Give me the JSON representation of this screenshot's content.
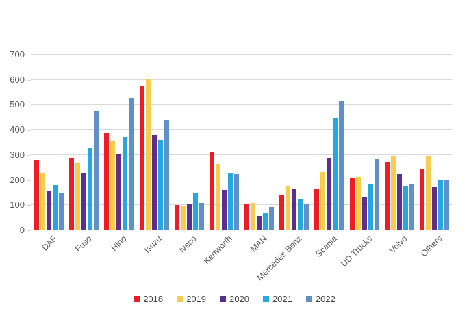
{
  "chart_data": {
    "type": "bar",
    "title": "",
    "categories": [
      "DAF",
      "Fuso",
      "Hino",
      "Isuzu",
      "Iveco",
      "Kenworth",
      "MAN",
      "Mercedes Benz",
      "Scania",
      "UD Trucks",
      "Volvo",
      "Others"
    ],
    "series": [
      {
        "name": "2018",
        "color": "#ee1c25",
        "values": [
          280,
          290,
          390,
          575,
          100,
          310,
          105,
          140,
          165,
          210,
          272,
          245
        ]
      },
      {
        "name": "2019",
        "color": "#f8cc4c",
        "values": [
          230,
          270,
          355,
          605,
          97,
          265,
          108,
          178,
          235,
          212,
          298,
          297
        ]
      },
      {
        "name": "2020",
        "color": "#5b2e90",
        "values": [
          155,
          228,
          305,
          380,
          105,
          160,
          58,
          163,
          290,
          133,
          223,
          171
        ]
      },
      {
        "name": "2021",
        "color": "#23a8e0",
        "values": [
          180,
          330,
          370,
          360,
          147,
          230,
          71,
          125,
          450,
          185,
          177,
          202
        ]
      },
      {
        "name": "2022",
        "color": "#6090c8",
        "values": [
          150,
          475,
          525,
          440,
          108,
          225,
          93,
          105,
          515,
          284,
          185,
          200
        ]
      }
    ],
    "yticks": [
      0,
      100,
      200,
      300,
      400,
      500,
      600,
      700
    ],
    "ylim": [
      0,
      700
    ],
    "grid": true,
    "grid_color": "#d9d9d9",
    "axis_text_color": "#595959",
    "legend_position": "bottom",
    "xlabel": "",
    "ylabel": ""
  }
}
